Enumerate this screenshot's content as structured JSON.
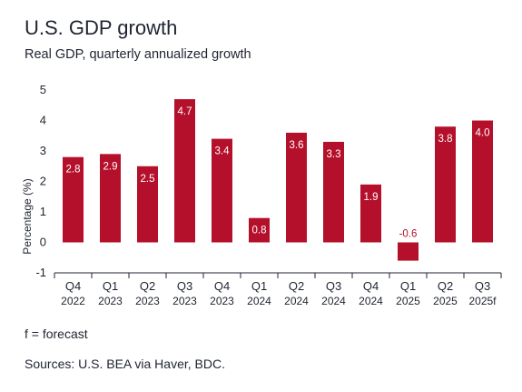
{
  "chart_data": {
    "type": "bar",
    "title": "U.S. GDP growth",
    "subtitle": "Real GDP, quarterly annualized growth",
    "ylabel": "Percentage (%)",
    "xlabel": "",
    "ylim": [
      -1,
      5
    ],
    "yticks": [
      -1,
      0,
      1,
      2,
      3,
      4,
      5
    ],
    "grid": false,
    "categories": [
      {
        "quarter": "Q4",
        "year": "2022"
      },
      {
        "quarter": "Q1",
        "year": "2023"
      },
      {
        "quarter": "Q2",
        "year": "2023"
      },
      {
        "quarter": "Q3",
        "year": "2023"
      },
      {
        "quarter": "Q4",
        "year": "2023"
      },
      {
        "quarter": "Q1",
        "year": "2024"
      },
      {
        "quarter": "Q2",
        "year": "2024"
      },
      {
        "quarter": "Q3",
        "year": "2024"
      },
      {
        "quarter": "Q4",
        "year": "2024"
      },
      {
        "quarter": "Q1",
        "year": "2025"
      },
      {
        "quarter": "Q2",
        "year": "2025"
      },
      {
        "quarter": "Q3",
        "year": "2025f"
      }
    ],
    "values": [
      2.8,
      2.9,
      2.5,
      4.7,
      3.4,
      0.8,
      3.6,
      3.3,
      1.9,
      -0.6,
      3.8,
      4.0
    ],
    "data_labels": [
      "2.8",
      "2.9",
      "2.5",
      "4.7",
      "3.4",
      "0.8",
      "3.6",
      "3.3",
      "1.9",
      "-0.6",
      "3.8",
      "4.0"
    ],
    "bar_color": "#b5102b",
    "label_color_inside": "#ffffff",
    "label_color_outside": "#b5102b"
  },
  "footnote": "f = forecast",
  "sources": "Sources: U.S. BEA via Haver, BDC."
}
